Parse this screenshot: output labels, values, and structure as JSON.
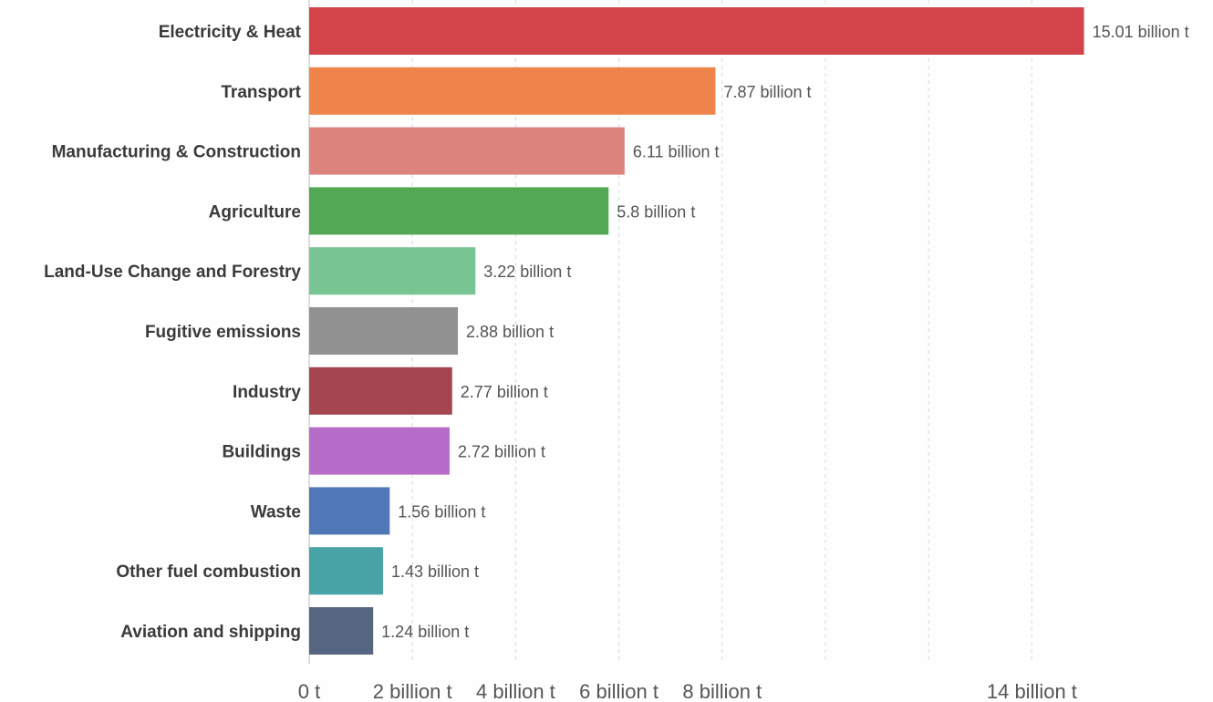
{
  "chart_data": {
    "type": "bar",
    "orientation": "horizontal",
    "categories": [
      "Electricity & Heat",
      "Transport",
      "Manufacturing & Construction",
      "Agriculture",
      "Land-Use Change and Forestry",
      "Fugitive emissions",
      "Industry",
      "Buildings",
      "Waste",
      "Other fuel combustion",
      "Aviation and shipping"
    ],
    "values": [
      15.01,
      7.87,
      6.11,
      5.8,
      3.22,
      2.88,
      2.77,
      2.72,
      1.56,
      1.43,
      1.24
    ],
    "value_labels": [
      "15.01 billion t",
      "7.87 billion t",
      "6.11 billion t",
      "5.8 billion t",
      "3.22 billion t",
      "2.88 billion t",
      "2.77 billion t",
      "2.72 billion t",
      "1.56 billion t",
      "1.43 billion t",
      "1.24 billion t"
    ],
    "colors": [
      "#d2444a",
      "#ef844a",
      "#db837c",
      "#52a855",
      "#79c493",
      "#919191",
      "#a44550",
      "#b66cc8",
      "#5077b7",
      "#47a3a6",
      "#566680"
    ],
    "xlim": [
      0,
      15.01
    ],
    "x_ticks": [
      {
        "value": 0,
        "label": "0 t"
      },
      {
        "value": 2,
        "label": "2 billion t"
      },
      {
        "value": 4,
        "label": "4 billion t"
      },
      {
        "value": 6,
        "label": "6 billion t"
      },
      {
        "value": 8,
        "label": "8 billion t"
      },
      {
        "value": 14,
        "label": "14 billion t"
      }
    ],
    "grid_values": [
      2,
      4,
      6,
      8,
      10,
      12,
      14
    ],
    "grid": true,
    "title": "",
    "xlabel": "",
    "ylabel": ""
  }
}
